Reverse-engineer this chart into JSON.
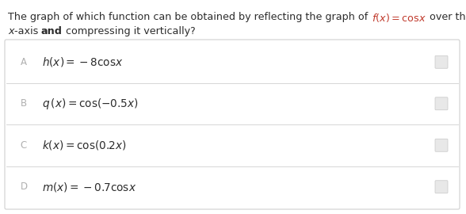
{
  "title_pre": "The graph of which function can be obtained by reflecting the graph of ",
  "title_formula": "$f(x)=\\mathrm{cos}x$",
  "title_post": " over the",
  "line2_italic": "x",
  "line2_normal": "-axis ",
  "line2_bold": "and",
  "line2_end": " compressing it vertically?",
  "options": [
    {
      "letter": "A",
      "text": "$h(x)=-8\\mathrm{cos}x$"
    },
    {
      "letter": "B",
      "text": "$q\\,(x)=\\cos(-0.5x)$"
    },
    {
      "letter": "C",
      "text": "$k(x)=\\cos(0.2x)$"
    },
    {
      "letter": "D",
      "text": "$m(x)=-0.7\\mathrm{cos}x$"
    }
  ],
  "background_color": "#ffffff",
  "border_color": "#d0d0d0",
  "text_color": "#2c2c2c",
  "letter_color": "#b0b0b0",
  "title_color": "#2c2c2c",
  "formula_color": "#c0392b",
  "radio_fill": "#e8e8e8",
  "radio_edge": "#c8c8c8",
  "title_fontsize": 9.2,
  "option_fontsize": 9.8,
  "letter_fontsize": 8.5
}
